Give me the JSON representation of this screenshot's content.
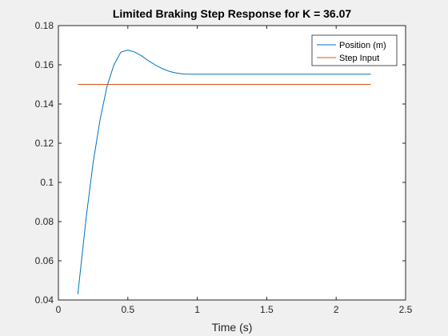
{
  "chart_data": {
    "type": "line",
    "title": "Limited Braking Step Response for K = 36.07",
    "xlabel": "Time (s)",
    "ylabel": "",
    "xlim": [
      0,
      2.5
    ],
    "ylim": [
      0.04,
      0.18
    ],
    "xticks": [
      0,
      0.5,
      1,
      1.5,
      2,
      2.5
    ],
    "xtick_labels": [
      "0",
      "0.5",
      "1",
      "1.5",
      "2",
      "2.5"
    ],
    "yticks": [
      0.04,
      0.06,
      0.08,
      0.1,
      0.12,
      0.14,
      0.16,
      0.18
    ],
    "ytick_labels": [
      "0.04",
      "0.06",
      "0.08",
      "0.1",
      "0.12",
      "0.14",
      "0.16",
      "0.18"
    ],
    "grid": false,
    "legend_position": "top-right",
    "series": [
      {
        "name": "Position (m)",
        "color": "#0072bd",
        "x": [
          0.14,
          0.2,
          0.25,
          0.3,
          0.35,
          0.4,
          0.45,
          0.5,
          0.55,
          0.6,
          0.65,
          0.7,
          0.75,
          0.8,
          0.85,
          0.9,
          0.95,
          1.0,
          1.2,
          1.5,
          2.0,
          2.25
        ],
        "y": [
          0.043,
          0.082,
          0.11,
          0.132,
          0.149,
          0.16,
          0.1665,
          0.1675,
          0.1665,
          0.1645,
          0.162,
          0.1598,
          0.158,
          0.1566,
          0.1558,
          0.1553,
          0.1552,
          0.1552,
          0.1552,
          0.1552,
          0.1552,
          0.1552
        ]
      },
      {
        "name": "Step Input",
        "color": "#d95319",
        "x": [
          0.14,
          2.25
        ],
        "y": [
          0.15,
          0.15
        ]
      }
    ]
  }
}
